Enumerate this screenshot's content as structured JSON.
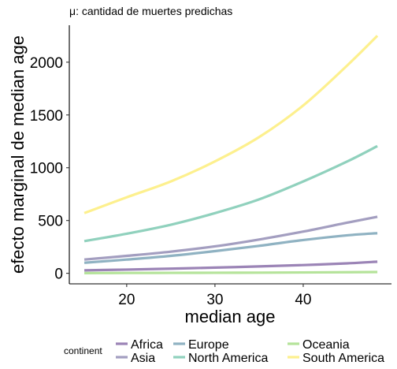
{
  "chart_data": {
    "type": "line",
    "subtitle": "μ: cantidad de muertes predichas",
    "xlabel": "median age",
    "ylabel": "efecto marginal de median age",
    "xlim": [
      13.5,
      50
    ],
    "ylim": [
      -100,
      2350
    ],
    "x_ticks": [
      20,
      30,
      40
    ],
    "y_ticks": [
      0,
      500,
      1000,
      1500,
      2000
    ],
    "grid": false,
    "legend": {
      "title": "continent",
      "position": "bottom"
    },
    "x": [
      15.2,
      20,
      25,
      30,
      35,
      40,
      45,
      48.4
    ],
    "series": [
      {
        "name": "Africa",
        "color": "#9b84b6",
        "values": [
          28,
          35,
          44,
          54,
          65,
          78,
          94,
          110
        ]
      },
      {
        "name": "Asia",
        "color": "#a39ec0",
        "values": [
          130,
          165,
          205,
          255,
          320,
          395,
          480,
          535
        ]
      },
      {
        "name": "Europe",
        "color": "#8fb2c2",
        "values": [
          100,
          130,
          165,
          210,
          260,
          315,
          360,
          380
        ]
      },
      {
        "name": "North America",
        "color": "#90d1bd",
        "values": [
          305,
          375,
          460,
          570,
          700,
          870,
          1060,
          1205
        ]
      },
      {
        "name": "Oceania",
        "color": "#b5e39a",
        "values": [
          2,
          3,
          4,
          5,
          6,
          8,
          10,
          12
        ]
      },
      {
        "name": "South America",
        "color": "#fdf08e",
        "values": [
          570,
          720,
          870,
          1060,
          1290,
          1590,
          1970,
          2250
        ]
      }
    ]
  }
}
